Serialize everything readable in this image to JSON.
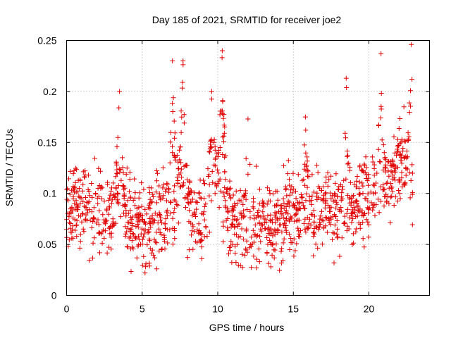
{
  "chart_data": {
    "type": "scatter",
    "title": "Day 185 of 2021, SRMTID for receiver joe2",
    "xlabel": "GPS time / hours",
    "ylabel": "SRMTID / TECUs",
    "xlim": [
      0,
      24
    ],
    "ylim": [
      0,
      0.25
    ],
    "xticks": [
      0,
      5,
      10,
      15,
      20
    ],
    "xtick_labels": [
      "0",
      "5",
      "10",
      "15",
      "20"
    ],
    "yticks": [
      0,
      0.05,
      0.1,
      0.15,
      0.2,
      0.25
    ],
    "ytick_labels": [
      "0",
      "0.05",
      "0.1",
      "0.15",
      "0.2",
      "0.25"
    ],
    "grid": true,
    "marker": "+",
    "color": "#e00000",
    "series": [
      {
        "name": "SRMTID",
        "x_range": [
          0,
          22.9
        ],
        "n_points": 1400,
        "baseline_envelope": [
          [
            0,
            0.085
          ],
          [
            1,
            0.085
          ],
          [
            2,
            0.083
          ],
          [
            3,
            0.08
          ],
          [
            3.5,
            0.1
          ],
          [
            4,
            0.08
          ],
          [
            5,
            0.07
          ],
          [
            6,
            0.075
          ],
          [
            7,
            0.08
          ],
          [
            7.5,
            0.12
          ],
          [
            8,
            0.09
          ],
          [
            9,
            0.075
          ],
          [
            9.5,
            0.11
          ],
          [
            10,
            0.12
          ],
          [
            10.5,
            0.09
          ],
          [
            11,
            0.07
          ],
          [
            12,
            0.065
          ],
          [
            13,
            0.07
          ],
          [
            14,
            0.072
          ],
          [
            15,
            0.08
          ],
          [
            16,
            0.085
          ],
          [
            17,
            0.085
          ],
          [
            18,
            0.09
          ],
          [
            19,
            0.09
          ],
          [
            20,
            0.1
          ],
          [
            21,
            0.11
          ],
          [
            22,
            0.13
          ],
          [
            22.9,
            0.12
          ]
        ],
        "spikes": [
          {
            "x": 3.5,
            "y": 0.2
          },
          {
            "x": 7.0,
            "y": 0.23
          },
          {
            "x": 7.7,
            "y": 0.23
          },
          {
            "x": 9.6,
            "y": 0.2
          },
          {
            "x": 10.3,
            "y": 0.24
          },
          {
            "x": 12.0,
            "y": 0.173
          },
          {
            "x": 15.8,
            "y": 0.175
          },
          {
            "x": 18.5,
            "y": 0.213
          },
          {
            "x": 20.8,
            "y": 0.237
          },
          {
            "x": 22.8,
            "y": 0.246
          }
        ],
        "y_min": 0.022,
        "y_max": 0.246
      }
    ]
  }
}
